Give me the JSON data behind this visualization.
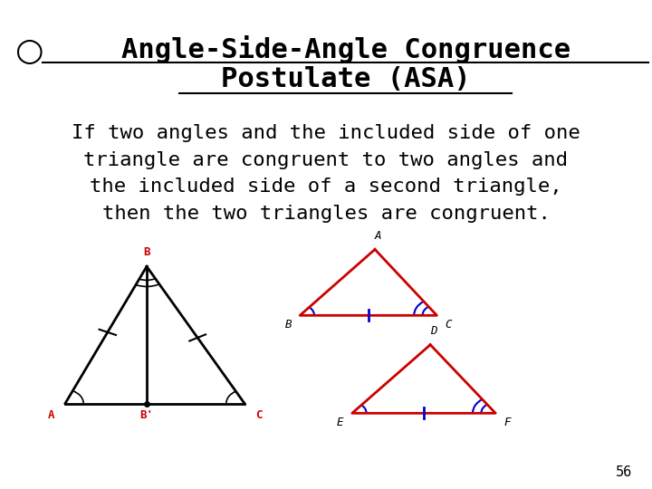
{
  "title_line1": "Angle-Side-Angle Congruence",
  "title_line2": "Postulate (ASA)",
  "body_text": "If two angles and the included side of one\ntriangle are congruent to two angles and\nthe included side of a second triangle,\nthen the two triangles are congruent.",
  "page_number": "56",
  "bg_color": "#ffffff",
  "title_color": "#000000",
  "body_color": "#000000",
  "red_color": "#cc0000",
  "blue_color": "#0000cc",
  "black_color": "#000000"
}
